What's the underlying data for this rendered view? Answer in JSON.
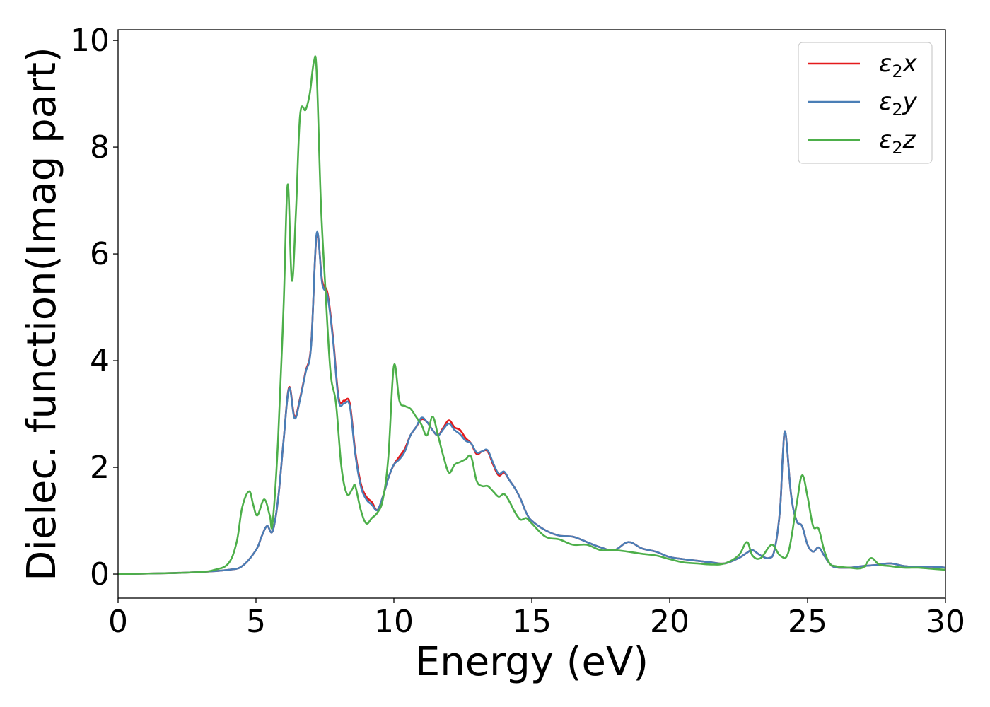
{
  "chart_data": {
    "type": "line",
    "xlabel": "Energy (eV)",
    "ylabel": "Dielec. function(Imag part)",
    "xlim": [
      0,
      30
    ],
    "ylim": [
      -0.45,
      10.2
    ],
    "xticks": [
      0,
      5,
      10,
      15,
      20,
      25,
      30
    ],
    "xtick_labels": [
      "0",
      "5",
      "10",
      "15",
      "20",
      "25",
      "30"
    ],
    "yticks": [
      0,
      2,
      4,
      6,
      8,
      10
    ],
    "ytick_labels": [
      "0",
      "2",
      "4",
      "6",
      "8",
      "10"
    ],
    "grid": false,
    "legend_position": "top-right",
    "series": [
      {
        "name": "ε2x",
        "legend_base": "ε",
        "legend_sub": "2",
        "legend_tail": "x",
        "color": "#e41a1c",
        "x": [
          0,
          2,
          3,
          4,
          4.5,
          5,
          5.2,
          5.4,
          5.6,
          5.8,
          6.0,
          6.2,
          6.4,
          6.6,
          6.8,
          7.0,
          7.2,
          7.4,
          7.6,
          7.8,
          8.0,
          8.2,
          8.4,
          8.6,
          8.8,
          9.0,
          9.2,
          9.4,
          9.6,
          9.8,
          10.0,
          10.2,
          10.4,
          10.6,
          10.8,
          11.0,
          11.2,
          11.4,
          11.6,
          11.8,
          12.0,
          12.2,
          12.4,
          12.6,
          12.8,
          13.0,
          13.2,
          13.4,
          13.6,
          13.8,
          14.0,
          14.2,
          14.4,
          14.6,
          14.8,
          15.0,
          15.5,
          16.0,
          16.5,
          17.0,
          17.5,
          18.0,
          18.5,
          19.0,
          19.5,
          20.0,
          20.5,
          21.0,
          21.5,
          22.0,
          22.5,
          22.8,
          23.0,
          23.3,
          23.6,
          23.8,
          24.0,
          24.1,
          24.2,
          24.4,
          24.6,
          24.8,
          25.0,
          25.2,
          25.4,
          25.6,
          25.8,
          26.0,
          26.5,
          27.0,
          27.5,
          28.0,
          28.5,
          29.0,
          29.5,
          30.0
        ],
        "y": [
          0.0,
          0.02,
          0.04,
          0.08,
          0.15,
          0.45,
          0.7,
          0.9,
          0.8,
          1.4,
          2.5,
          3.5,
          2.95,
          3.3,
          3.8,
          4.3,
          6.35,
          5.5,
          5.25,
          4.4,
          3.3,
          3.25,
          3.2,
          2.3,
          1.7,
          1.45,
          1.35,
          1.2,
          1.45,
          1.8,
          2.05,
          2.2,
          2.35,
          2.6,
          2.75,
          2.9,
          2.85,
          2.7,
          2.6,
          2.75,
          2.88,
          2.75,
          2.7,
          2.55,
          2.45,
          2.25,
          2.3,
          2.3,
          2.05,
          1.85,
          1.9,
          1.75,
          1.6,
          1.4,
          1.15,
          1.0,
          0.82,
          0.72,
          0.7,
          0.6,
          0.5,
          0.45,
          0.6,
          0.48,
          0.42,
          0.32,
          0.28,
          0.25,
          0.22,
          0.2,
          0.3,
          0.4,
          0.45,
          0.35,
          0.3,
          0.45,
          1.2,
          2.2,
          2.65,
          1.5,
          1.0,
          0.9,
          0.55,
          0.42,
          0.5,
          0.35,
          0.2,
          0.13,
          0.12,
          0.15,
          0.17,
          0.2,
          0.15,
          0.13,
          0.14,
          0.12
        ]
      },
      {
        "name": "ε2y",
        "legend_base": "ε",
        "legend_sub": "2",
        "legend_tail": "y",
        "color": "#4a7eb6",
        "x": [
          0,
          2,
          3,
          4,
          4.5,
          5,
          5.2,
          5.4,
          5.6,
          5.8,
          6.0,
          6.2,
          6.4,
          6.6,
          6.8,
          7.0,
          7.2,
          7.4,
          7.6,
          7.8,
          8.0,
          8.2,
          8.4,
          8.6,
          8.8,
          9.0,
          9.2,
          9.4,
          9.6,
          9.8,
          10.0,
          10.2,
          10.4,
          10.6,
          10.8,
          11.0,
          11.2,
          11.4,
          11.6,
          11.8,
          12.0,
          12.2,
          12.4,
          12.6,
          12.8,
          13.0,
          13.2,
          13.4,
          13.6,
          13.8,
          14.0,
          14.2,
          14.4,
          14.6,
          14.8,
          15.0,
          15.5,
          16.0,
          16.5,
          17.0,
          17.5,
          18.0,
          18.5,
          19.0,
          19.5,
          20.0,
          20.5,
          21.0,
          21.5,
          22.0,
          22.5,
          22.8,
          23.0,
          23.3,
          23.6,
          23.8,
          24.0,
          24.1,
          24.2,
          24.4,
          24.6,
          24.8,
          25.0,
          25.2,
          25.4,
          25.6,
          25.8,
          26.0,
          26.5,
          27.0,
          27.5,
          28.0,
          28.5,
          29.0,
          29.5,
          30.0
        ],
        "y": [
          0.0,
          0.02,
          0.04,
          0.08,
          0.15,
          0.45,
          0.7,
          0.9,
          0.8,
          1.4,
          2.5,
          3.48,
          2.92,
          3.28,
          3.78,
          4.28,
          6.38,
          5.45,
          5.2,
          4.35,
          3.25,
          3.2,
          3.15,
          2.25,
          1.65,
          1.4,
          1.3,
          1.2,
          1.45,
          1.8,
          2.05,
          2.15,
          2.3,
          2.6,
          2.75,
          2.93,
          2.85,
          2.7,
          2.6,
          2.72,
          2.82,
          2.7,
          2.62,
          2.5,
          2.45,
          2.28,
          2.3,
          2.32,
          2.08,
          1.88,
          1.92,
          1.75,
          1.6,
          1.4,
          1.15,
          1.0,
          0.82,
          0.72,
          0.7,
          0.6,
          0.5,
          0.45,
          0.6,
          0.48,
          0.42,
          0.32,
          0.28,
          0.25,
          0.22,
          0.2,
          0.3,
          0.4,
          0.45,
          0.35,
          0.3,
          0.45,
          1.2,
          2.2,
          2.65,
          1.5,
          1.0,
          0.9,
          0.55,
          0.42,
          0.5,
          0.35,
          0.2,
          0.13,
          0.12,
          0.15,
          0.17,
          0.2,
          0.15,
          0.13,
          0.14,
          0.12
        ]
      },
      {
        "name": "ε2z",
        "legend_base": "ε",
        "legend_sub": "2",
        "legend_tail": "z",
        "color": "#4daf4a",
        "x": [
          0,
          2,
          3,
          3.5,
          4.0,
          4.3,
          4.5,
          4.75,
          4.9,
          5.05,
          5.3,
          5.5,
          5.6,
          5.8,
          6.0,
          6.15,
          6.3,
          6.45,
          6.6,
          6.8,
          6.95,
          7.1,
          7.2,
          7.35,
          7.5,
          7.7,
          7.9,
          8.1,
          8.3,
          8.5,
          8.6,
          8.8,
          9.0,
          9.2,
          9.4,
          9.6,
          9.8,
          10.0,
          10.2,
          10.4,
          10.6,
          10.8,
          11.0,
          11.2,
          11.4,
          11.6,
          11.8,
          12.0,
          12.2,
          12.4,
          12.6,
          12.8,
          13.0,
          13.2,
          13.4,
          13.6,
          13.8,
          14.0,
          14.2,
          14.4,
          14.6,
          14.8,
          15.0,
          15.5,
          16.0,
          16.5,
          17.0,
          17.5,
          18.0,
          18.5,
          19.0,
          19.5,
          20.0,
          20.5,
          21.0,
          21.5,
          22.0,
          22.5,
          22.8,
          23.0,
          23.3,
          23.7,
          24.0,
          24.3,
          24.6,
          24.8,
          25.0,
          25.2,
          25.4,
          25.6,
          25.8,
          26.0,
          26.5,
          27.0,
          27.3,
          27.6,
          28.0,
          28.5,
          29.0,
          29.5,
          30.0
        ],
        "y": [
          0.0,
          0.02,
          0.04,
          0.08,
          0.2,
          0.6,
          1.25,
          1.55,
          1.3,
          1.1,
          1.4,
          1.1,
          0.95,
          2.5,
          5.0,
          7.3,
          5.5,
          6.8,
          8.6,
          8.7,
          9.0,
          9.6,
          9.4,
          7.0,
          5.5,
          3.8,
          3.2,
          2.0,
          1.5,
          1.6,
          1.65,
          1.2,
          0.95,
          1.05,
          1.15,
          1.4,
          2.2,
          3.9,
          3.25,
          3.15,
          3.1,
          2.95,
          2.8,
          2.6,
          2.95,
          2.6,
          2.2,
          1.9,
          2.05,
          2.1,
          2.15,
          2.2,
          1.75,
          1.65,
          1.65,
          1.55,
          1.45,
          1.5,
          1.35,
          1.15,
          1.02,
          1.05,
          0.95,
          0.7,
          0.65,
          0.55,
          0.55,
          0.45,
          0.45,
          0.42,
          0.38,
          0.35,
          0.28,
          0.22,
          0.2,
          0.18,
          0.2,
          0.35,
          0.6,
          0.35,
          0.3,
          0.55,
          0.35,
          0.4,
          1.3,
          1.85,
          1.45,
          0.9,
          0.85,
          0.45,
          0.2,
          0.15,
          0.12,
          0.12,
          0.3,
          0.18,
          0.15,
          0.12,
          0.12,
          0.1,
          0.08
        ]
      }
    ]
  }
}
